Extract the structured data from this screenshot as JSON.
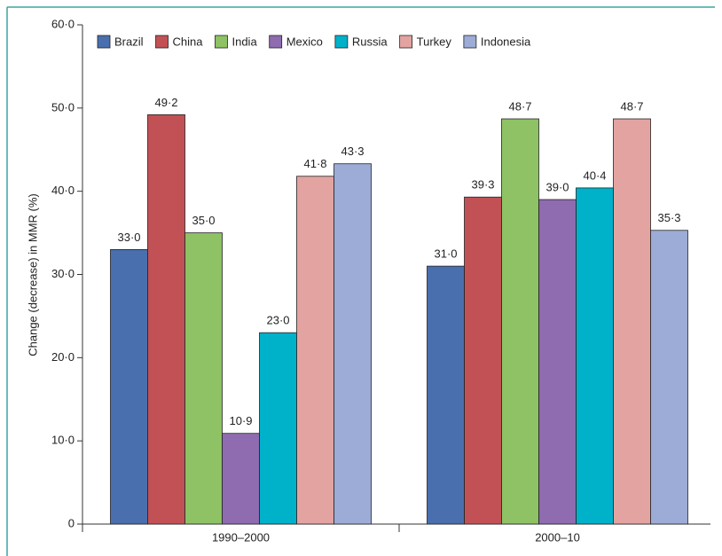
{
  "chart_data": {
    "type": "bar",
    "y_label": "Change (decrease) in MMR (%)",
    "categories": [
      "1990–2000",
      "2000–10"
    ],
    "series": [
      {
        "name": "Brazil",
        "color": "#4a6fae",
        "values": [
          33.0,
          31.0
        ],
        "value_labels": [
          "33·0",
          "31·0"
        ]
      },
      {
        "name": "China",
        "color": "#c25155",
        "values": [
          49.2,
          39.3
        ],
        "value_labels": [
          "49·2",
          "39·3"
        ]
      },
      {
        "name": "India",
        "color": "#8ec265",
        "values": [
          35.0,
          48.7
        ],
        "value_labels": [
          "35·0",
          "48·7"
        ]
      },
      {
        "name": "Mexico",
        "color": "#8f6bb0",
        "values": [
          10.9,
          39.0
        ],
        "value_labels": [
          "10·9",
          "39·0"
        ]
      },
      {
        "name": "Russia",
        "color": "#00b1ca",
        "values": [
          23.0,
          40.4
        ],
        "value_labels": [
          "23·0",
          "40·4"
        ]
      },
      {
        "name": "Turkey",
        "color": "#e3a3a1",
        "values": [
          41.8,
          48.7
        ],
        "value_labels": [
          "41·8",
          "48·7"
        ]
      },
      {
        "name": "Indonesia",
        "color": "#9dacd6",
        "values": [
          43.3,
          35.3
        ],
        "value_labels": [
          "43·3",
          "35·3"
        ]
      }
    ],
    "ylim": [
      0,
      60
    ],
    "yticks": [
      0,
      {
        "value": 10,
        "label": "10·0"
      },
      {
        "value": 20,
        "label": "20·0"
      },
      {
        "value": 30,
        "label": "30·0"
      },
      {
        "value": 40,
        "label": "40·0"
      },
      {
        "value": 50,
        "label": "50·0"
      },
      {
        "value": 60,
        "label": "60·0"
      }
    ],
    "legend": "top-left"
  }
}
